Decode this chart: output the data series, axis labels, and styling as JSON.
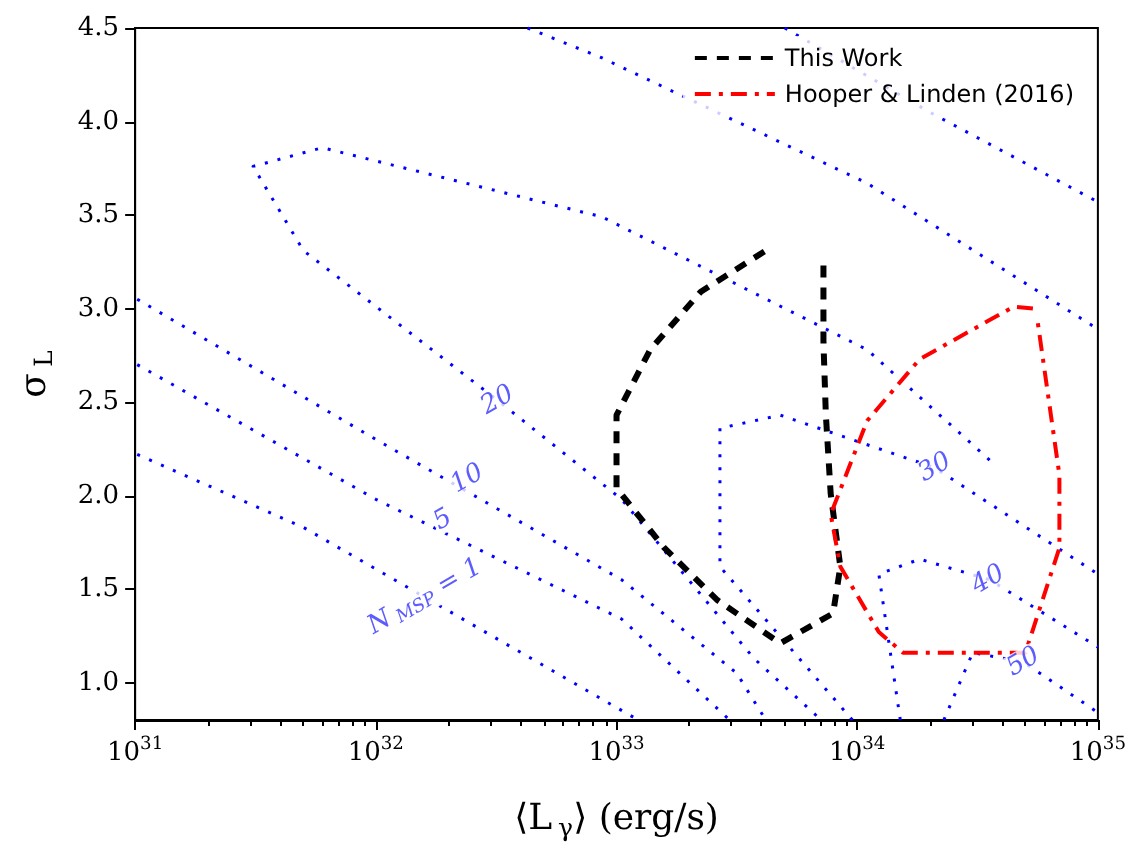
{
  "chart_data": {
    "type": "line",
    "xlabel": "⟨L$_{γ}$⟩ (erg/s)",
    "ylabel": "σ$_{L}$",
    "log": "x",
    "grid": false,
    "legend": "top right",
    "marker": "none",
    "xlim": [
      1e+31,
      1e+35
    ],
    "ylim": [
      0.8,
      4.5
    ],
    "xticks": [
      {
        "value": 1e+31,
        "label": "10$^{31}$"
      },
      {
        "value": 1e+32,
        "label": "10$^{32}$"
      },
      {
        "value": 1e+33,
        "label": "10$^{33}$"
      },
      {
        "value": 1e+34,
        "label": "10$^{34}$"
      },
      {
        "value": 1e+35,
        "label": "10$^{35}$"
      }
    ],
    "yticks": [
      {
        "value": 1,
        "label": "1.0"
      },
      {
        "value": 1.5,
        "label": "1.5"
      },
      {
        "value": 2,
        "label": "2.0"
      },
      {
        "value": 2.5,
        "label": "2.5"
      },
      {
        "value": 3,
        "label": "3.0"
      },
      {
        "value": 3.5,
        "label": "3.5"
      },
      {
        "value": 4,
        "label": "4.0"
      },
      {
        "value": 4.5,
        "label": "4.5"
      }
    ],
    "series": [
      {
        "color": "#0000ff",
        "line_style": "dotted",
        "x": [
          1.02e+31,
          5e+31,
          1.23e+33
        ],
        "values": [
          2.22,
          1.83,
          0.8
        ]
      },
      {
        "color": "#0000ff",
        "line_style": "dotted",
        "x": [
          1.02e+31,
          1e+32,
          1.05e+33,
          2.95e+33
        ],
        "values": [
          2.7,
          1.98,
          1.34,
          0.8
        ]
      },
      {
        "color": "#0000ff",
        "line_style": "dotted",
        "x": [
          1.02e+31,
          1e+32,
          1.05e+33,
          3.16e+33,
          4.17e+33
        ],
        "values": [
          3.05,
          2.3,
          1.55,
          1.05,
          0.8
        ]
      },
      {
        "color": "#0000ff",
        "line_style": "dotted",
        "x": [
          3.55e+34,
          1.1e+34,
          8.71e+32,
          6e+31,
          3.09e+31,
          5e+31,
          3.2e+32,
          1.05e+33,
          3.72e+33,
          7.08e+33
        ],
        "values": [
          2.19,
          2.78,
          3.49,
          3.86,
          3.76,
          3.31,
          2.51,
          1.98,
          1.13,
          0.8
        ]
      },
      {
        "color": "#0000ff",
        "line_style": "dotted",
        "x": [
          9.55e+33,
          2.69e+33,
          2.69e+33,
          4.79e+33,
          2.09e+34,
          1e+35
        ],
        "values": [
          0.8,
          1.62,
          2.36,
          2.43,
          2.15,
          1.58
        ]
      },
      {
        "color": "#0000ff",
        "line_style": "dotted",
        "x": [
          1.51e+34,
          1.23e+34,
          1.82e+34,
          3.55e+34,
          1e+35
        ],
        "values": [
          0.8,
          1.58,
          1.66,
          1.55,
          1.19
        ]
      },
      {
        "color": "#0000ff",
        "line_style": "dotted",
        "x": [
          2.29e+34,
          3.02e+34,
          4.9e+34,
          1e+35
        ],
        "values": [
          0.8,
          1.16,
          1.11,
          0.84
        ]
      },
      {
        "color": "#0000ff",
        "line_style": "dotted",
        "x": [
          4.27e+32,
          8.71e+32,
          1.1e+34,
          1e+35
        ],
        "values": [
          4.5,
          4.34,
          3.67,
          2.89
        ]
      },
      {
        "color": "#0000ff",
        "line_style": "dotted",
        "x": [
          5e+33,
          2e+34,
          1e+35
        ],
        "values": [
          4.5,
          4.05,
          3.57
        ]
      },
      {
        "name": "This Work",
        "color": "#000000",
        "line_style": "dashed",
        "x": [
          7.24e+33,
          7.24e+33,
          7.41e+33,
          7.76e+33,
          8.51e+33,
          7.94e+33,
          4.79e+33,
          2.63e+33,
          1.58e+33,
          1e+33,
          1e+33,
          1.38e+33,
          2.24e+33,
          4.17e+33
        ],
        "values": [
          3.23,
          2.82,
          2.43,
          2.01,
          1.62,
          1.37,
          1.21,
          1.44,
          1.72,
          2.04,
          2.43,
          2.78,
          3.09,
          3.31
        ]
      },
      {
        "name": "Hooper & Linden (2016)",
        "color": "#ff0000",
        "line_style": "dashdot",
        "x": [
          5.37e+34,
          4.47e+34,
          1.82e+34,
          1.1e+34,
          7.76e+33,
          8.51e+33,
          1.23e+34,
          1.55e+34,
          5e+34,
          6.92e+34,
          6.92e+34,
          5.62e+34
        ],
        "values": [
          3.0,
          3.01,
          2.73,
          2.4,
          1.9,
          1.62,
          1.27,
          1.16,
          1.16,
          1.72,
          2.11,
          2.93
        ]
      }
    ],
    "annotations": [
      {
        "text": "20",
        "x": 3.2e+32,
        "y": 2.51
      },
      {
        "text": "10",
        "x": 2.4e+32,
        "y": 2.09
      },
      {
        "text": "5",
        "x": 1.9e+32,
        "y": 1.87
      },
      {
        "text": "N$_{MSP}$ = 1",
        "x": 1.6e+32,
        "y": 1.46
      },
      {
        "text": "30",
        "x": 2.1e+34,
        "y": 2.15
      },
      {
        "text": "40",
        "x": 3.5e+34,
        "y": 1.55
      },
      {
        "text": "50",
        "x": 4.9e+34,
        "y": 1.11
      }
    ]
  }
}
